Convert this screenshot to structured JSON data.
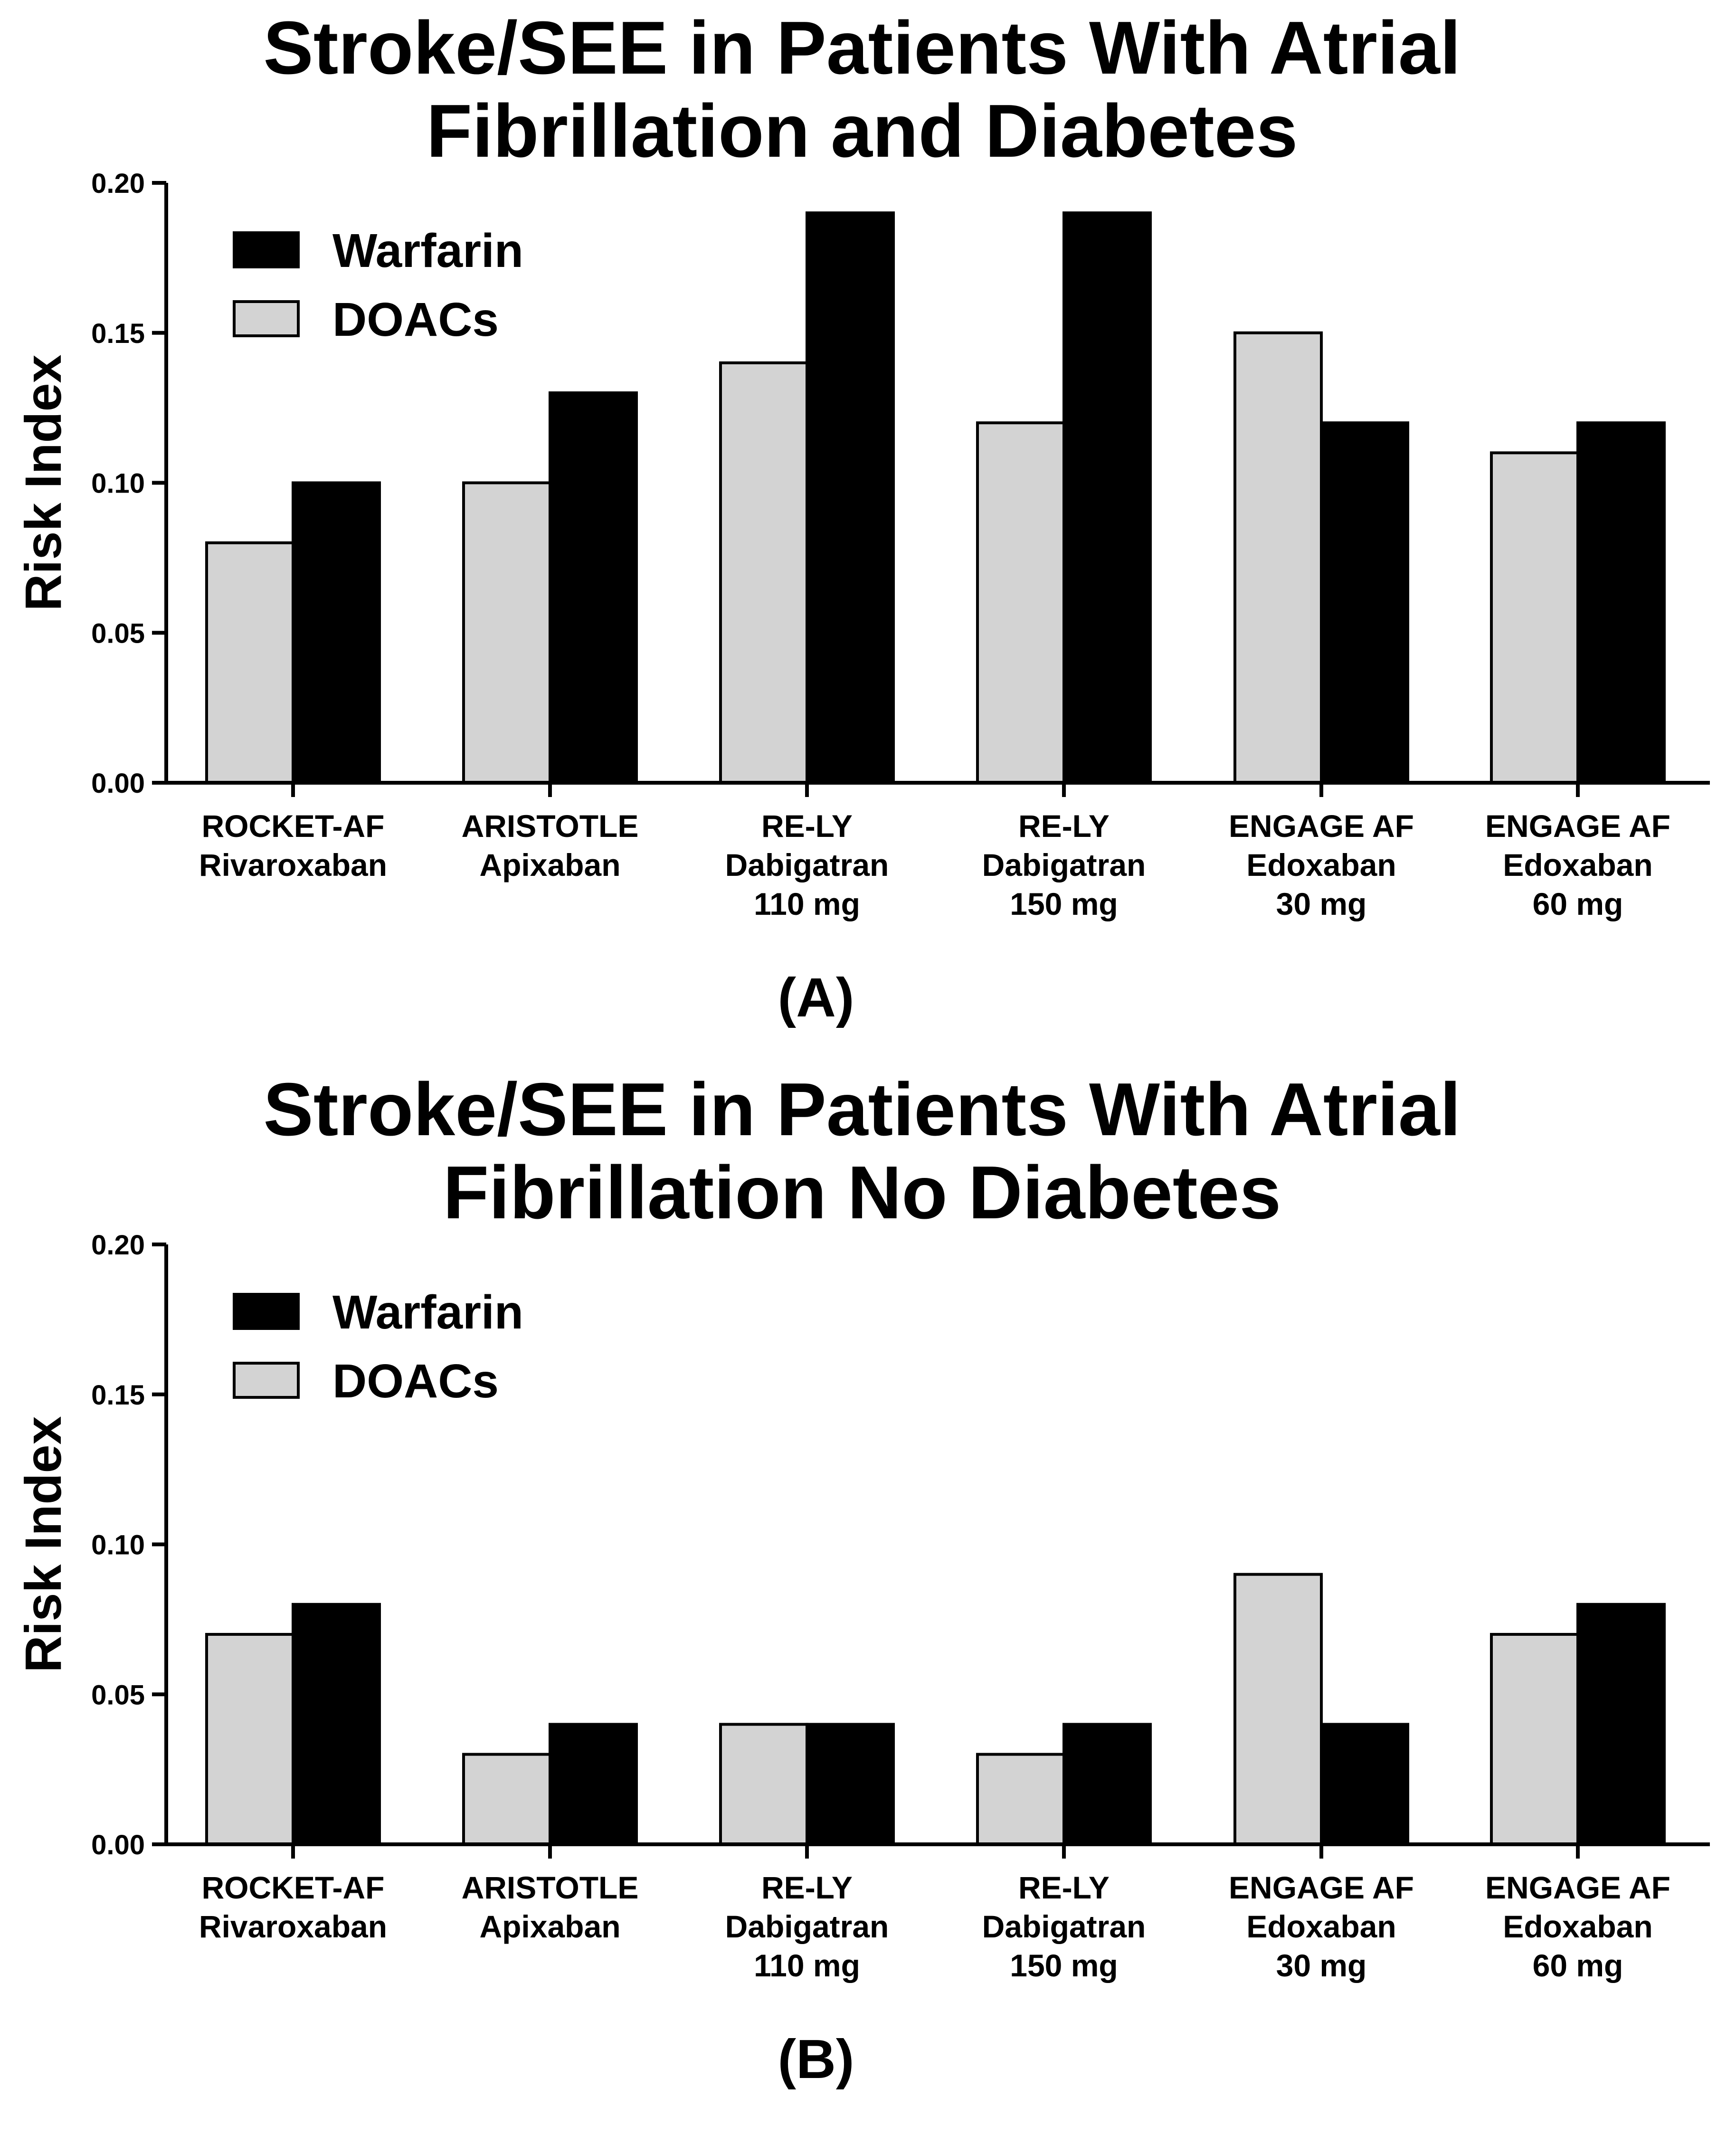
{
  "chart_data": [
    {
      "type": "bar",
      "panel_label": "(A)",
      "title_lines": [
        "Stroke/SEE in Patients With Atrial",
        "Fibrillation and Diabetes"
      ],
      "ylabel": "Risk Index",
      "ylim": [
        0,
        0.2
      ],
      "yticks": [
        "0.00",
        "0.05",
        "0.10",
        "0.15",
        "0.20"
      ],
      "grid": false,
      "legend_position": "top-left",
      "categories": [
        [
          "ROCKET-AF",
          "Rivaroxaban"
        ],
        [
          "ARISTOTLE",
          "Apixaban"
        ],
        [
          "RE-LY",
          "Dabigatran",
          "110 mg"
        ],
        [
          "RE-LY",
          "Dabigatran",
          "150 mg"
        ],
        [
          "ENGAGE AF",
          "Edoxaban",
          "30 mg"
        ],
        [
          "ENGAGE AF",
          "Edoxaban",
          "60 mg"
        ]
      ],
      "series": [
        {
          "name": "DOACs",
          "color": "#d3d3d3",
          "values": [
            0.08,
            0.1,
            0.14,
            0.12,
            0.15,
            0.11
          ]
        },
        {
          "name": "Warfarin",
          "color": "#000000",
          "values": [
            0.1,
            0.13,
            0.19,
            0.19,
            0.12,
            0.12
          ]
        }
      ],
      "legend_order": [
        "Warfarin",
        "DOACs"
      ]
    },
    {
      "type": "bar",
      "panel_label": "(B)",
      "title_lines": [
        "Stroke/SEE in Patients With Atrial",
        "Fibrillation No Diabetes"
      ],
      "ylabel": "Risk Index",
      "ylim": [
        0,
        0.2
      ],
      "yticks": [
        "0.00",
        "0.05",
        "0.10",
        "0.15",
        "0.20"
      ],
      "grid": false,
      "legend_position": "top-left",
      "categories": [
        [
          "ROCKET-AF",
          "Rivaroxaban"
        ],
        [
          "ARISTOTLE",
          "Apixaban"
        ],
        [
          "RE-LY",
          "Dabigatran",
          "110 mg"
        ],
        [
          "RE-LY",
          "Dabigatran",
          "150 mg"
        ],
        [
          "ENGAGE AF",
          "Edoxaban",
          "30 mg"
        ],
        [
          "ENGAGE AF",
          "Edoxaban",
          "60 mg"
        ]
      ],
      "series": [
        {
          "name": "DOACs",
          "color": "#d3d3d3",
          "values": [
            0.07,
            0.03,
            0.04,
            0.03,
            0.09,
            0.07
          ]
        },
        {
          "name": "Warfarin",
          "color": "#000000",
          "values": [
            0.08,
            0.04,
            0.04,
            0.04,
            0.04,
            0.08
          ]
        }
      ],
      "legend_order": [
        "Warfarin",
        "DOACs"
      ]
    }
  ]
}
